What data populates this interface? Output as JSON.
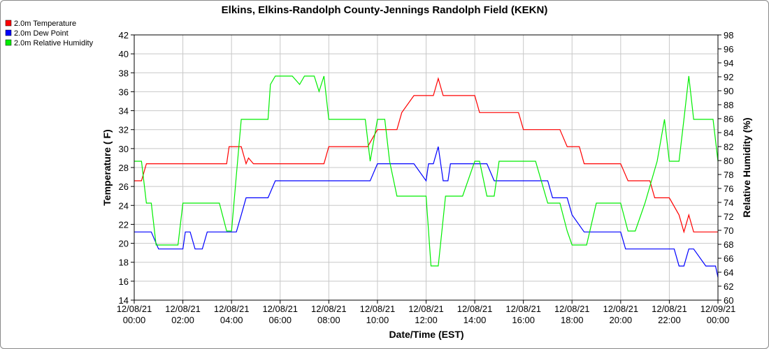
{
  "chart_data": {
    "type": "line",
    "title": "Elkins, Elkins-Randolph County-Jennings Randolph Field (KEKN)",
    "xlabel": "Date/Time (EST)",
    "ylabel_left": "Temperature ( F)",
    "ylabel_right": "Relative Humidity (%)",
    "ylim_left": [
      14,
      42
    ],
    "ylim_right": [
      60,
      98
    ],
    "yticks_left": [
      "14",
      "16",
      "18",
      "20",
      "22",
      "24",
      "26",
      "28",
      "30",
      "32",
      "34",
      "36",
      "38",
      "40",
      "42"
    ],
    "yticks_right": [
      "60",
      "62",
      "64",
      "66",
      "68",
      "70",
      "72",
      "74",
      "76",
      "78",
      "80",
      "82",
      "84",
      "86",
      "88",
      "90",
      "92",
      "94",
      "96",
      "98"
    ],
    "xlim_hours": [
      0,
      24
    ],
    "xticks": [
      {
        "date": "12/08/21",
        "time": "00:00"
      },
      {
        "date": "12/08/21",
        "time": "02:00"
      },
      {
        "date": "12/08/21",
        "time": "04:00"
      },
      {
        "date": "12/08/21",
        "time": "06:00"
      },
      {
        "date": "12/08/21",
        "time": "08:00"
      },
      {
        "date": "12/08/21",
        "time": "10:00"
      },
      {
        "date": "12/08/21",
        "time": "12:00"
      },
      {
        "date": "12/08/21",
        "time": "14:00"
      },
      {
        "date": "12/08/21",
        "time": "16:00"
      },
      {
        "date": "12/08/21",
        "time": "18:00"
      },
      {
        "date": "12/08/21",
        "time": "20:00"
      },
      {
        "date": "12/08/21",
        "time": "22:00"
      },
      {
        "date": "12/09/21",
        "time": "00:00"
      }
    ],
    "grid": true,
    "legend_position": "top-left",
    "series": [
      {
        "name": "2.0m Temperature",
        "color": "#ff0000",
        "axis": "left",
        "x": [
          0.0,
          0.3,
          0.5,
          0.8,
          1.5,
          1.8,
          2.0,
          3.0,
          3.8,
          3.9,
          4.1,
          4.4,
          4.6,
          4.7,
          4.9,
          5.2,
          5.4,
          5.6,
          5.8,
          6.0,
          6.8,
          7.2,
          7.5,
          7.8,
          8.0,
          9.0,
          9.5,
          9.6,
          10.0,
          10.5,
          10.8,
          11.0,
          11.5,
          11.7,
          12.0,
          12.3,
          12.5,
          12.7,
          13.0,
          13.4,
          13.6,
          13.9,
          14.0,
          14.2,
          14.4,
          14.6,
          14.8,
          15.0,
          15.2,
          15.6,
          15.8,
          16.0,
          17.0,
          17.5,
          17.8,
          18.0,
          18.3,
          18.5,
          19.0,
          19.4,
          19.7,
          20.0,
          20.3,
          20.6,
          20.8,
          21.2,
          21.4,
          21.6,
          21.8,
          22.0,
          22.4,
          22.6,
          22.8,
          23.0,
          23.3,
          23.6,
          23.9,
          24.0
        ],
        "y": [
          26.6,
          26.6,
          28.4,
          28.4,
          28.4,
          28.4,
          28.4,
          28.4,
          28.4,
          30.2,
          30.2,
          30.2,
          28.4,
          29.0,
          28.4,
          28.4,
          28.4,
          28.4,
          28.4,
          28.4,
          28.4,
          28.4,
          28.4,
          28.4,
          30.2,
          30.2,
          30.2,
          30.2,
          32.0,
          32.0,
          32.0,
          33.8,
          35.6,
          35.6,
          35.6,
          35.6,
          37.4,
          35.6,
          35.6,
          35.6,
          35.6,
          35.6,
          35.6,
          33.8,
          33.8,
          33.8,
          33.8,
          33.8,
          33.8,
          33.8,
          33.8,
          32.0,
          32.0,
          32.0,
          30.2,
          30.2,
          30.2,
          28.4,
          28.4,
          28.4,
          28.4,
          28.4,
          26.6,
          26.6,
          26.6,
          26.6,
          24.8,
          24.8,
          24.8,
          24.8,
          23.0,
          21.2,
          23.0,
          21.2,
          21.2,
          21.2,
          21.2,
          21.2
        ]
      },
      {
        "name": "2.0m Dew Point",
        "color": "#0000ff",
        "axis": "left",
        "x": [
          0.0,
          0.5,
          0.7,
          1.0,
          1.5,
          1.8,
          2.0,
          2.1,
          2.3,
          2.5,
          2.8,
          3.0,
          3.5,
          4.0,
          4.2,
          4.4,
          4.6,
          4.8,
          5.0,
          5.2,
          5.5,
          5.8,
          6.0,
          6.5,
          7.0,
          7.5,
          8.0,
          8.5,
          9.0,
          9.5,
          9.7,
          10.0,
          10.5,
          11.0,
          11.2,
          11.5,
          12.0,
          12.1,
          12.3,
          12.5,
          12.7,
          12.9,
          13.0,
          13.3,
          13.5,
          13.8,
          14.0,
          14.3,
          14.5,
          14.8,
          15.0,
          15.5,
          16.0,
          16.5,
          17.0,
          17.2,
          17.5,
          17.8,
          18.0,
          18.5,
          19.0,
          19.5,
          20.0,
          20.2,
          20.4,
          20.6,
          21.0,
          21.5,
          22.0,
          22.2,
          22.4,
          22.6,
          22.8,
          23.0,
          23.5,
          23.8,
          23.9,
          24.0
        ],
        "y": [
          21.2,
          21.2,
          21.2,
          19.4,
          19.4,
          19.4,
          19.4,
          21.2,
          21.2,
          19.4,
          19.4,
          21.2,
          21.2,
          21.2,
          21.2,
          23.0,
          24.8,
          24.8,
          24.8,
          24.8,
          24.8,
          26.6,
          26.6,
          26.6,
          26.6,
          26.6,
          26.6,
          26.6,
          26.6,
          26.6,
          26.6,
          28.4,
          28.4,
          28.4,
          28.4,
          28.4,
          26.6,
          28.4,
          28.4,
          30.2,
          26.6,
          26.6,
          28.4,
          28.4,
          28.4,
          28.4,
          28.4,
          28.4,
          28.4,
          26.6,
          26.6,
          26.6,
          26.6,
          26.6,
          26.6,
          24.8,
          24.8,
          24.8,
          23.0,
          21.2,
          21.2,
          21.2,
          21.2,
          19.4,
          19.4,
          19.4,
          19.4,
          19.4,
          19.4,
          19.4,
          17.6,
          17.6,
          19.4,
          19.4,
          17.6,
          17.6,
          17.6,
          16.4
        ]
      },
      {
        "name": "2.0m Relative Humidity",
        "color": "#00ee00",
        "axis": "right",
        "x": [
          0.0,
          0.3,
          0.5,
          0.7,
          0.9,
          1.0,
          1.5,
          1.8,
          2.0,
          2.5,
          3.0,
          3.5,
          3.8,
          4.0,
          4.2,
          4.4,
          4.6,
          5.0,
          5.2,
          5.5,
          5.6,
          5.8,
          6.0,
          6.5,
          6.8,
          7.0,
          7.2,
          7.4,
          7.6,
          7.8,
          8.0,
          8.5,
          9.0,
          9.5,
          9.7,
          10.0,
          10.3,
          10.5,
          10.8,
          11.0,
          11.5,
          11.8,
          12.0,
          12.2,
          12.5,
          12.8,
          13.0,
          13.5,
          14.0,
          14.2,
          14.5,
          14.8,
          15.0,
          15.5,
          16.0,
          16.5,
          17.0,
          17.5,
          17.8,
          18.0,
          18.3,
          18.6,
          19.0,
          19.5,
          20.0,
          20.3,
          20.6,
          21.0,
          21.5,
          21.8,
          22.0,
          22.2,
          22.4,
          22.6,
          22.8,
          23.0,
          23.5,
          23.8,
          24.0
        ],
        "y": [
          79.9,
          79.9,
          73.9,
          73.9,
          67.9,
          67.9,
          67.9,
          67.9,
          73.9,
          73.9,
          73.9,
          73.9,
          69.9,
          69.9,
          77.9,
          85.9,
          85.9,
          85.9,
          85.9,
          85.9,
          90.9,
          92.1,
          92.1,
          92.1,
          90.9,
          92.1,
          92.1,
          92.1,
          89.9,
          92.1,
          85.9,
          85.9,
          85.9,
          85.9,
          79.9,
          85.9,
          85.9,
          79.9,
          74.9,
          74.9,
          74.9,
          74.9,
          74.9,
          64.9,
          64.9,
          74.9,
          74.9,
          74.9,
          79.9,
          79.9,
          74.9,
          74.9,
          79.9,
          79.9,
          79.9,
          79.9,
          73.9,
          73.9,
          69.9,
          67.9,
          67.9,
          67.9,
          73.9,
          73.9,
          73.9,
          69.9,
          69.9,
          73.9,
          79.9,
          85.9,
          79.9,
          79.9,
          79.9,
          85.9,
          92.1,
          85.9,
          85.9,
          85.9,
          79.9
        ]
      }
    ]
  }
}
